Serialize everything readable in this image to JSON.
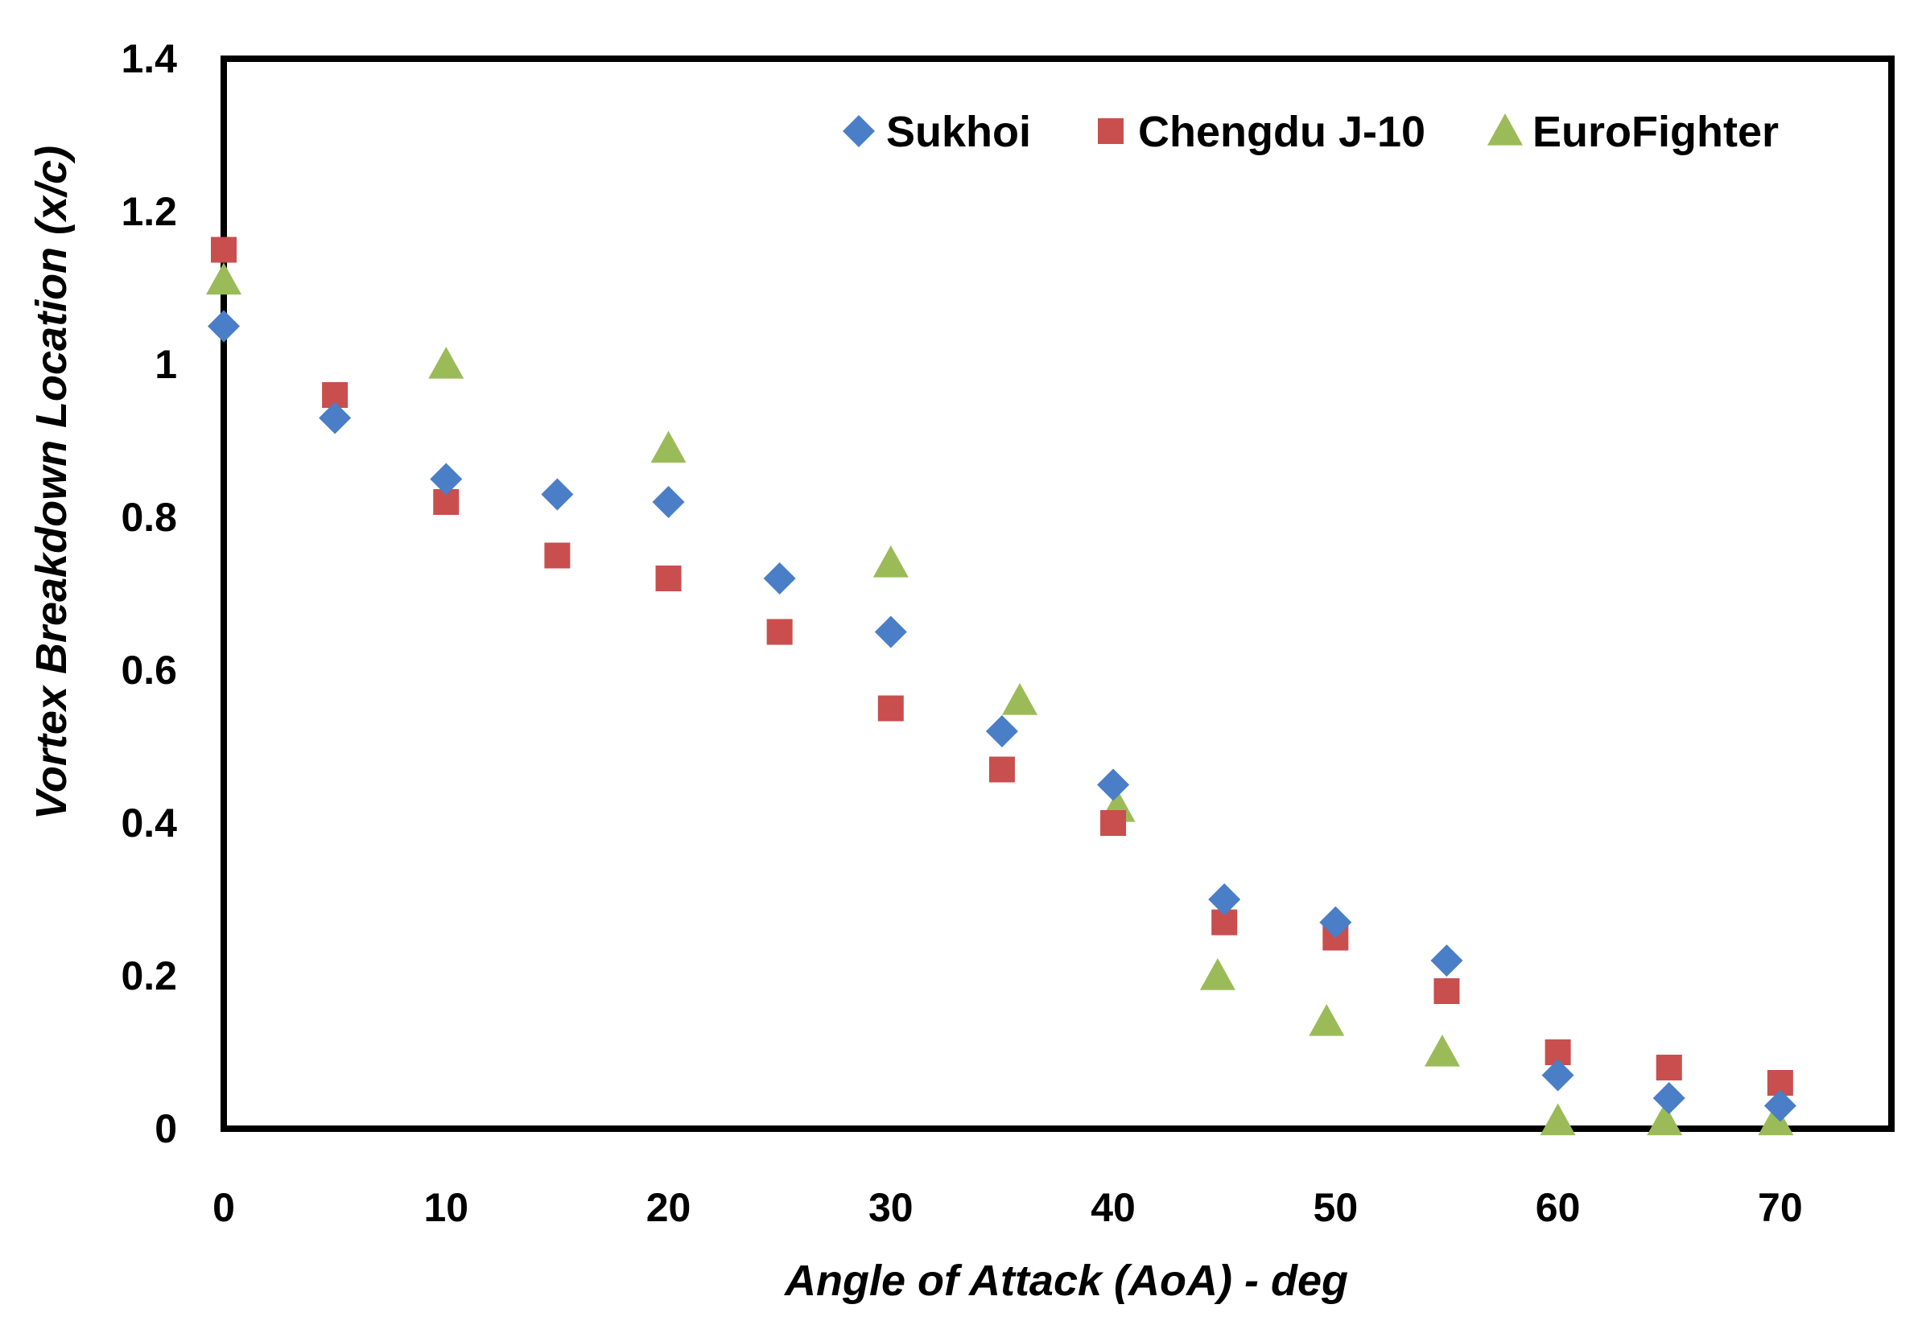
{
  "chart_data": {
    "type": "scatter",
    "title": "",
    "xlabel": "Angle of Attack (AoA) - deg",
    "ylabel": "Vortex Breakdown Location (x/c)",
    "xlim": [
      0,
      75
    ],
    "ylim": [
      0,
      1.4
    ],
    "xticks": [
      0,
      10,
      20,
      30,
      40,
      50,
      60,
      70
    ],
    "yticks": [
      0,
      0.2,
      0.4,
      0.6,
      0.8,
      1,
      1.2,
      1.4
    ],
    "x_tick_labels": [
      "0",
      "10",
      "20",
      "30",
      "40",
      "50",
      "60",
      "70"
    ],
    "y_tick_labels": [
      "0",
      "0.2",
      "0.4",
      "0.6",
      "0.8",
      "1",
      "1.2",
      "1.4"
    ],
    "grid": false,
    "legend_position": "top-right",
    "series": [
      {
        "name": "Sukhoi",
        "marker": "diamond",
        "color": "#4A7EC7",
        "x": [
          0,
          5,
          10,
          15,
          20,
          25,
          30,
          35,
          40,
          45,
          50,
          55,
          60,
          65,
          70
        ],
        "y": [
          1.05,
          0.93,
          0.85,
          0.83,
          0.82,
          0.72,
          0.65,
          0.52,
          0.45,
          0.3,
          0.27,
          0.22,
          0.07,
          0.04,
          0.03
        ]
      },
      {
        "name": "Chengdu J-10",
        "marker": "square",
        "color": "#C94E4E",
        "x": [
          0,
          5,
          10,
          15,
          20,
          25,
          30,
          35,
          40,
          45,
          50,
          55,
          60,
          65,
          70
        ],
        "y": [
          1.15,
          0.96,
          0.82,
          0.75,
          0.72,
          0.65,
          0.55,
          0.47,
          0.4,
          0.27,
          0.25,
          0.18,
          0.1,
          0.08,
          0.06
        ]
      },
      {
        "name": "EuroFighter",
        "marker": "triangle",
        "color": "#9BBB59",
        "x": [
          0,
          10,
          20,
          30,
          35.8,
          40.2,
          44.7,
          49.6,
          54.8,
          60,
          64.8,
          69.8
        ],
        "y": [
          1.11,
          1.0,
          0.89,
          0.74,
          0.56,
          0.42,
          0.2,
          0.14,
          0.1,
          0.01,
          0.01,
          0.01
        ]
      }
    ]
  }
}
